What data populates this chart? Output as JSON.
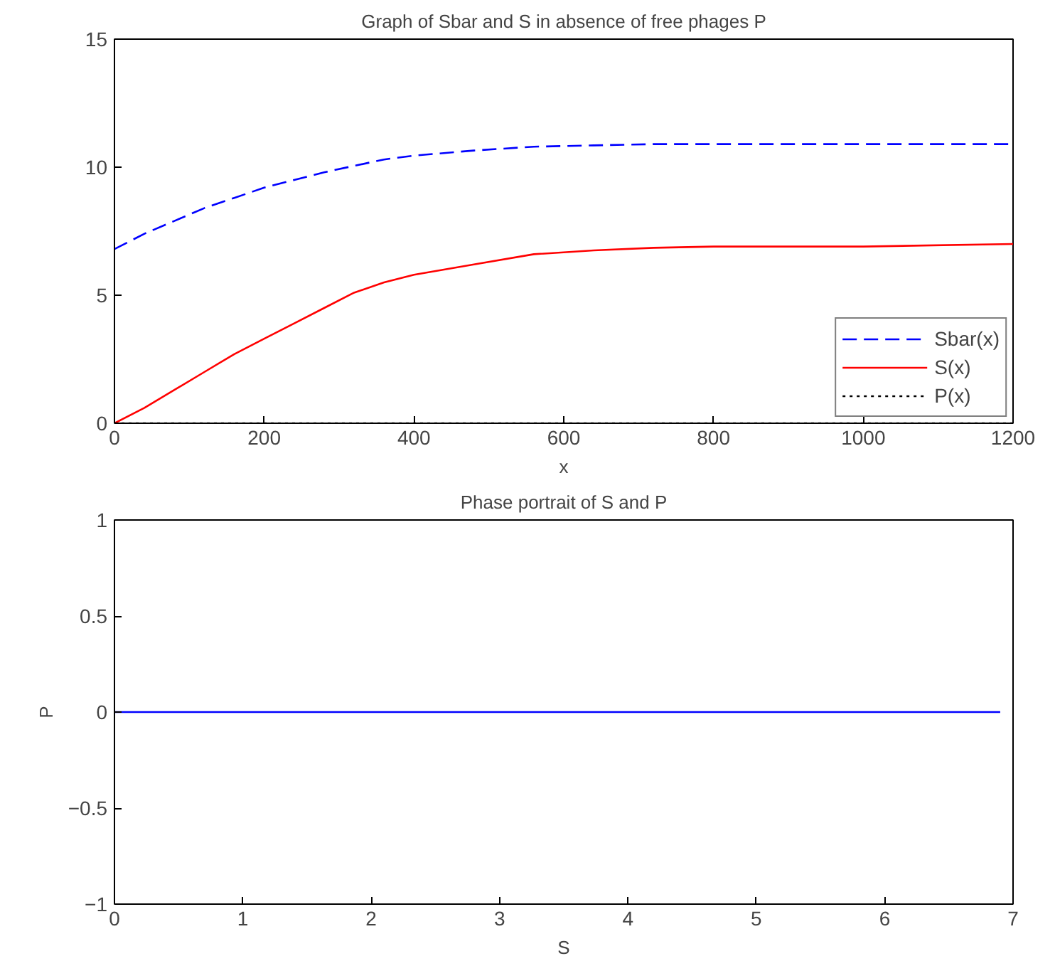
{
  "chart_data": [
    {
      "type": "line",
      "title": "Graph of Sbar and S in absence of free phages P",
      "xlabel": "x",
      "x": [
        0,
        40,
        80,
        120,
        160,
        200,
        240,
        280,
        320,
        360,
        400,
        480,
        560,
        640,
        720,
        800,
        1000,
        1200
      ],
      "series": [
        {
          "name": "Sbar(x)",
          "color": "#0000ff",
          "line_style": "dashed",
          "values": [
            6.8,
            7.4,
            7.9,
            8.4,
            8.8,
            9.2,
            9.5,
            9.8,
            10.05,
            10.3,
            10.45,
            10.65,
            10.8,
            10.85,
            10.9,
            10.9,
            10.9,
            10.9
          ]
        },
        {
          "name": "S(x)",
          "color": "#ff0000",
          "line_style": "solid",
          "values": [
            0,
            0.6,
            1.3,
            2.0,
            2.7,
            3.3,
            3.9,
            4.5,
            5.1,
            5.5,
            5.8,
            6.2,
            6.6,
            6.75,
            6.85,
            6.9,
            6.9,
            7.0
          ]
        },
        {
          "name": "P(x)",
          "color": "#000000",
          "line_style": "dotted",
          "values": [
            0,
            0,
            0,
            0,
            0,
            0,
            0,
            0,
            0,
            0,
            0,
            0,
            0,
            0,
            0,
            0,
            0,
            0
          ]
        }
      ],
      "xlim": [
        0,
        1200
      ],
      "xticks": [
        0,
        200,
        400,
        600,
        800,
        1000,
        1200
      ],
      "ylim": [
        0,
        15
      ],
      "yticks": [
        0,
        5,
        10,
        15
      ],
      "grid": false,
      "legend": "bottom right"
    },
    {
      "type": "line",
      "title": "Phase portrait of S and P",
      "xlabel": "S",
      "ylabel": "P",
      "x": [
        0,
        6.9
      ],
      "series": [
        {
          "color": "#0000ff",
          "line_style": "solid",
          "values": [
            0,
            0
          ]
        }
      ],
      "xlim": [
        0,
        7
      ],
      "xticks": [
        0,
        1,
        2,
        3,
        4,
        5,
        6,
        7
      ],
      "ylim": [
        -1,
        1
      ],
      "yticks": [
        -1,
        -0.5,
        0,
        0.5,
        1
      ],
      "grid": false
    }
  ]
}
